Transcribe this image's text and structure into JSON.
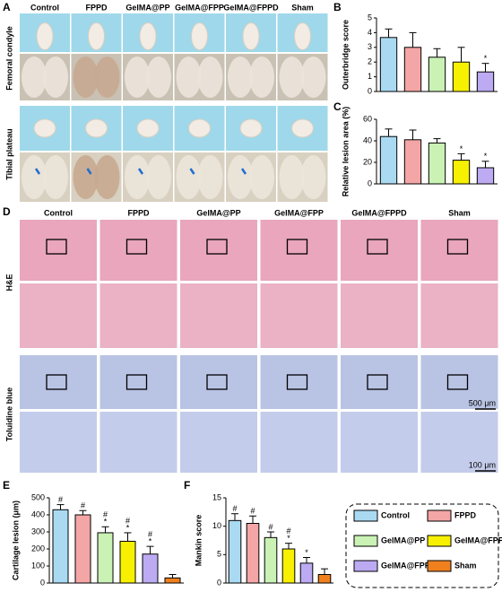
{
  "panel_labels": [
    "A",
    "B",
    "C",
    "D",
    "E",
    "F"
  ],
  "panel_a": {
    "columns": [
      "Control",
      "FPPD",
      "GelMA@PP",
      "GelMA@FPP",
      "GelMA@FPPD",
      "Sham"
    ],
    "rows": [
      "Femoral condyle",
      "Tibial plateau"
    ]
  },
  "panel_d": {
    "columns": [
      "Control",
      "FPPD",
      "GelMA@PP",
      "GelMA@FPP",
      "GelMA@FPPD",
      "Sham"
    ],
    "rows": [
      "H&E",
      "Toluidine  blue"
    ],
    "scale_bars": [
      "500 μm",
      "100 μm"
    ]
  },
  "chart_data": [
    {
      "type": "bar",
      "y_label": "Outerbridge score",
      "categories": [
        "Control",
        "FPPD",
        "GelMA@PP",
        "GelMA@FPP",
        "GelMA@FPPD"
      ],
      "colors": [
        "#a9daf2",
        "#f4a5a5",
        "#c9f2b4",
        "#f7f000",
        "#bcaaf2"
      ],
      "values": [
        3.67,
        3,
        2.33,
        2,
        1.33
      ],
      "errors": [
        0.58,
        1,
        0.58,
        1,
        0.58
      ],
      "annotations": [
        null,
        null,
        null,
        null,
        [
          "*"
        ]
      ],
      "ylim": [
        0,
        5
      ],
      "yticks": [
        0,
        1,
        2,
        3,
        4,
        5
      ]
    },
    {
      "type": "bar",
      "y_label": "Relative lesion area (%)",
      "categories": [
        "Control",
        "FPPD",
        "GelMA@PP",
        "GelMA@FPP",
        "GelMA@FPPD"
      ],
      "colors": [
        "#a9daf2",
        "#f4a5a5",
        "#c9f2b4",
        "#f7f000",
        "#bcaaf2"
      ],
      "values": [
        44,
        41,
        38,
        22,
        15
      ],
      "errors": [
        7,
        9,
        4,
        6,
        6
      ],
      "annotations": [
        null,
        null,
        null,
        [
          "*"
        ],
        [
          "*"
        ]
      ],
      "ylim": [
        0,
        60
      ],
      "yticks": [
        0,
        20,
        40,
        60
      ]
    },
    {
      "type": "bar",
      "y_label": "Cartilage lesion (μm)",
      "categories": [
        "Control",
        "FPPD",
        "GelMA@PP",
        "GelMA@FPP",
        "GelMA@FPPD",
        "Sham"
      ],
      "colors": [
        "#a9daf2",
        "#f4a5a5",
        "#c9f2b4",
        "#f7f000",
        "#bcaaf2",
        "#f0801e"
      ],
      "values": [
        430,
        400,
        295,
        245,
        170,
        30
      ],
      "errors": [
        30,
        25,
        35,
        50,
        45,
        20
      ],
      "annotations": [
        [
          "#"
        ],
        [
          "#"
        ],
        [
          "#",
          "*"
        ],
        [
          "#",
          "*"
        ],
        [
          "#",
          "*"
        ],
        null
      ],
      "ylim": [
        0,
        500
      ],
      "yticks": [
        0,
        100,
        200,
        300,
        400,
        500
      ]
    },
    {
      "type": "bar",
      "y_label": "Mankin score",
      "categories": [
        "Control",
        "FPPD",
        "GelMA@PP",
        "GelMA@FPP",
        "GelMA@FPPD",
        "Sham"
      ],
      "colors": [
        "#a9daf2",
        "#f4a5a5",
        "#c9f2b4",
        "#f7f000",
        "#bcaaf2",
        "#f0801e"
      ],
      "values": [
        11,
        10.5,
        8,
        6,
        3.5,
        1.5
      ],
      "errors": [
        1.2,
        1.3,
        1,
        1,
        1,
        1
      ],
      "annotations": [
        [
          "#"
        ],
        [
          "#"
        ],
        [
          "#"
        ],
        [
          "#",
          "*"
        ],
        [
          "*"
        ],
        null
      ],
      "ylim": [
        0,
        15
      ],
      "yticks": [
        0,
        5,
        10,
        15
      ]
    }
  ]
}
